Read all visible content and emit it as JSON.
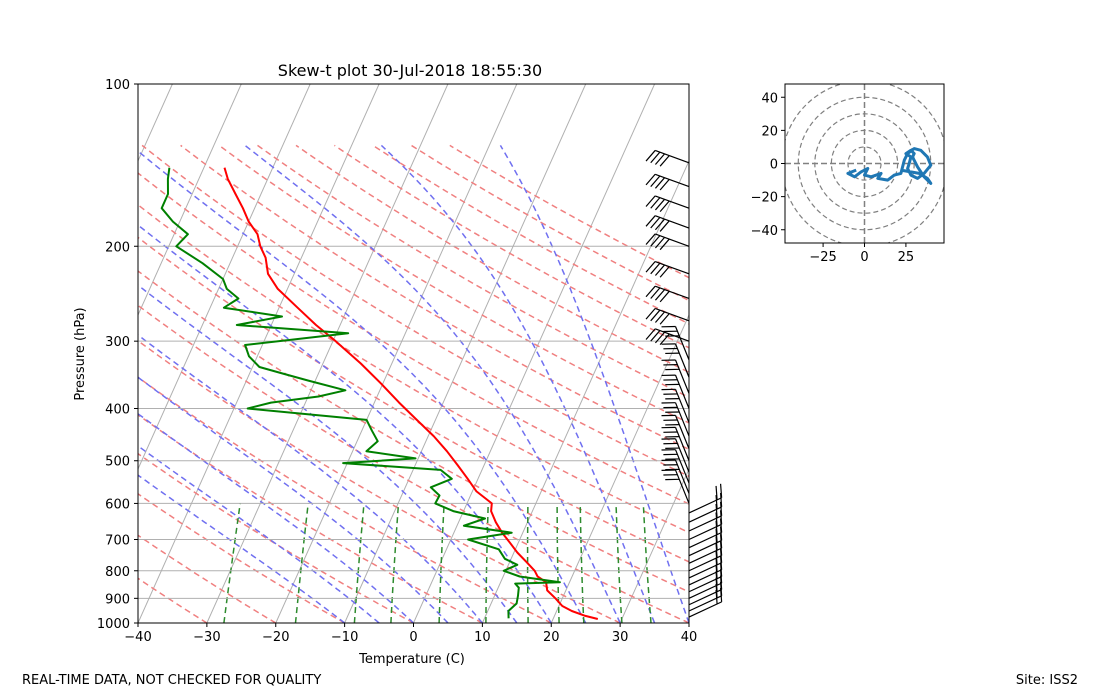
{
  "chart_data": [
    {
      "type": "line",
      "subtype": "skew-t",
      "title": "Skew-t plot 30-Jul-2018 18:55:30",
      "xlabel": "Temperature (C)",
      "ylabel": "Pressure (hPa)",
      "xlim": [
        -40,
        40
      ],
      "ylim": [
        1000,
        100
      ],
      "skew": 35,
      "x_ticks": [
        -40,
        -30,
        -20,
        -10,
        0,
        10,
        20,
        30,
        40
      ],
      "x_tick_labels": [
        "−40",
        "−30",
        "−20",
        "−10",
        "0",
        "10",
        "20",
        "30",
        "40"
      ],
      "y_ticks": [
        100,
        200,
        300,
        400,
        500,
        600,
        700,
        800,
        900,
        1000
      ],
      "y_tick_labels": [
        "100",
        "200",
        "300",
        "400",
        "500",
        "600",
        "700",
        "800",
        "900",
        "1000"
      ],
      "background_lines": {
        "isotherm_color": "#b0b0b0",
        "dry_adiabat_color": "#f08080",
        "moist_adiabat_color": "#7070f0",
        "mixing_ratio_color": "#2e8b2e"
      },
      "series": [
        {
          "name": "Temperature",
          "color": "#ff0000",
          "p": [
            983,
            970,
            950,
            930,
            900,
            870,
            840,
            820,
            800,
            770,
            740,
            710,
            680,
            650,
            620,
            600,
            570,
            540,
            510,
            480,
            450,
            420,
            390,
            360,
            330,
            300,
            280,
            260,
            240,
            225,
            210,
            200,
            190,
            180,
            170,
            160,
            150,
            143
          ],
          "t": [
            26.5,
            24.5,
            22.2,
            20.5,
            19.0,
            17.3,
            16.6,
            15.0,
            14.2,
            12.4,
            10.5,
            8.8,
            7.0,
            5.4,
            4.0,
            3.6,
            0.6,
            -1.5,
            -3.8,
            -6.3,
            -9.2,
            -12.7,
            -16.4,
            -20.2,
            -24.5,
            -29.6,
            -33.5,
            -37.3,
            -41.4,
            -43.8,
            -45.2,
            -46.7,
            -47.9,
            -50.0,
            -51.7,
            -53.7,
            -55.8,
            -57.0
          ]
        },
        {
          "name": "Dewpoint",
          "color": "#008000",
          "p": [
            980,
            950,
            920,
            890,
            860,
            845,
            840,
            820,
            800,
            780,
            760,
            730,
            700,
            680,
            660,
            640,
            620,
            600,
            580,
            560,
            540,
            520,
            505,
            495,
            480,
            460,
            440,
            420,
            400,
            390,
            380,
            370,
            355,
            345,
            335,
            320,
            305,
            290,
            280,
            270,
            260,
            250,
            240,
            230,
            215,
            200,
            190,
            180,
            170,
            160,
            150,
            143
          ],
          "t": [
            13.5,
            13.0,
            13.7,
            13.4,
            13.0,
            12.2,
            18.6,
            12.4,
            9.7,
            11.3,
            9.1,
            7.6,
            2.5,
            8.4,
            1.0,
            3.6,
            -1.5,
            -4.6,
            -4.5,
            -6.3,
            -3.8,
            -6.0,
            -20.6,
            -10.4,
            -18.0,
            -17.0,
            -18.5,
            -20.0,
            -38.0,
            -35.0,
            -28.5,
            -25.0,
            -31.0,
            -35.0,
            -39.0,
            -41.2,
            -42.5,
            -28.3,
            -45.0,
            -39.0,
            -48.0,
            -46.5,
            -48.8,
            -50.0,
            -54.0,
            -58.9,
            -58.0,
            -61.0,
            -63.5,
            -63.5,
            -64.5,
            -65.0
          ]
        }
      ],
      "wind_barbs": {
        "color": "#000000",
        "pressure_levels": [
          975,
          950,
          925,
          900,
          875,
          850,
          825,
          800,
          775,
          750,
          725,
          700,
          675,
          650,
          625,
          600,
          575,
          550,
          525,
          500,
          475,
          450,
          425,
          400,
          375,
          350,
          325,
          300,
          275,
          250,
          225,
          200,
          185,
          170,
          155,
          140
        ]
      }
    },
    {
      "type": "line",
      "subtype": "hodograph",
      "title": "",
      "x_ticks": [
        -25,
        0,
        25
      ],
      "x_tick_labels": [
        "−25",
        "0",
        "25"
      ],
      "y_ticks": [
        40,
        20,
        0,
        -20,
        -40
      ],
      "y_tick_labels": [
        "40",
        "20",
        "0",
        "−20",
        "−40"
      ],
      "xlim": [
        -48,
        48
      ],
      "ylim": [
        -48,
        48
      ],
      "rings": [
        10,
        20,
        30,
        40,
        50
      ],
      "color": "#1f77b4",
      "u": [
        -5,
        -10,
        -6,
        -2,
        2,
        0,
        4,
        10,
        8,
        14,
        18,
        22,
        24,
        26,
        30,
        34,
        38,
        40,
        36,
        32,
        28,
        26,
        27,
        28,
        25,
        28,
        30,
        29,
        32,
        36,
        40,
        38,
        33,
        22
      ],
      "v": [
        -4,
        -6,
        -8,
        -5,
        -3,
        -7,
        -8,
        -6,
        -9,
        -10,
        -7,
        -6,
        2,
        6,
        9,
        8,
        4,
        -1,
        -6,
        -9,
        -7,
        -3,
        0,
        4,
        6,
        8,
        6,
        4,
        -2,
        -8,
        -12,
        -9,
        -6,
        -4
      ]
    }
  ],
  "footer": {
    "left": "REAL-TIME DATA, NOT CHECKED FOR QUALITY",
    "right": "Site: ISS2"
  }
}
